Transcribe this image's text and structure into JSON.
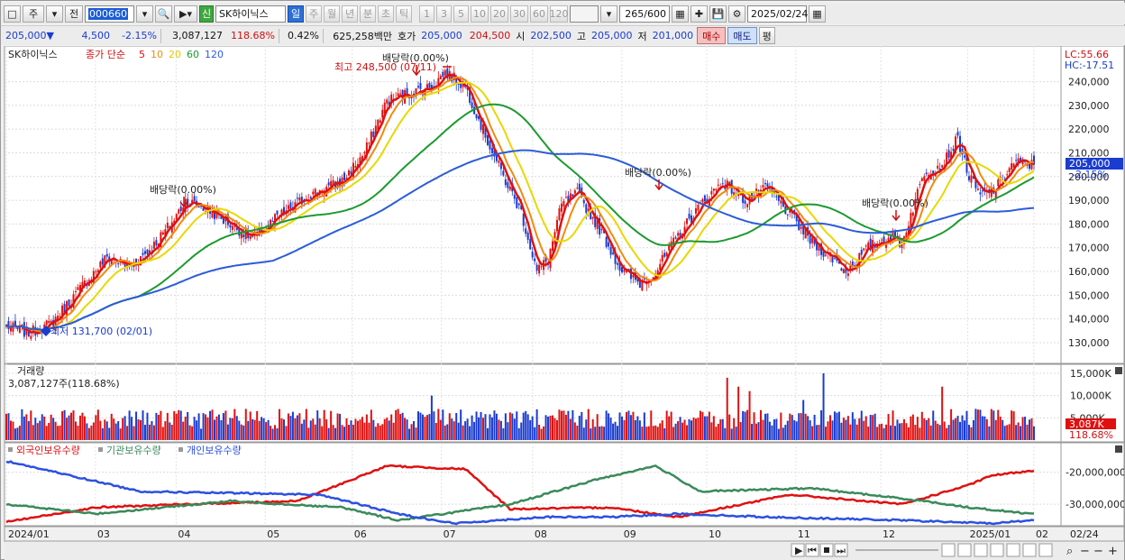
{
  "toolbar": {
    "period_main": "주",
    "prev_label": "전",
    "stock_code": "000660",
    "new_badge": "신",
    "stock_name": "SK하이닉스",
    "periods": [
      "일",
      "주",
      "월",
      "년",
      "분",
      "초",
      "틱"
    ],
    "active_period": "일",
    "numbers": [
      "1",
      "3",
      "5",
      "10",
      "20",
      "30",
      "60",
      "120"
    ],
    "count_value": "265",
    "count_total": "/600",
    "date_value": "2025/02/24"
  },
  "quote": {
    "price": "205,000",
    "change": "4,500",
    "change_pct": "-2.15%",
    "volume": "3,087,127",
    "volume_ratio": "118.68%",
    "turnover": "0.42%",
    "amount": "625,258백만",
    "bid_label": "호가",
    "bid1": "205,000",
    "bid2": "204,500",
    "open_label": "시",
    "open": "202,500",
    "high_label": "고",
    "high": "205,000",
    "low_label": "저",
    "low": "201,000",
    "buy_label": "매수",
    "sell_label": "매도",
    "eval_label": "평"
  },
  "price_panel": {
    "name": "SK하이닉스",
    "legend_prefix": "종가 단순",
    "ma_labels": [
      {
        "text": "5",
        "color": "#e01010"
      },
      {
        "text": "10",
        "color": "#f08a10"
      },
      {
        "text": "20",
        "color": "#e8c800"
      },
      {
        "text": "60",
        "color": "#1c9a30"
      },
      {
        "text": "120",
        "color": "#2c5cd8"
      }
    ],
    "lc": "LC:55.66",
    "hc": "HC:-17.51",
    "y_ticks": [
      "240,000",
      "230,000",
      "220,000",
      "210,000",
      "200,000",
      "190,000",
      "180,000",
      "170,000",
      "160,000",
      "150,000",
      "140,000",
      "130,000"
    ],
    "cur_price_tag": "205,000",
    "cur_pct_tag": "-2.15%",
    "max_label": "최고 248,500 (07/11)",
    "min_label": "최저 131,700 (02/01)",
    "dividend_labels": [
      "배당락(0.00%)",
      "배당락(0.00%)",
      "배당락(0.00%)",
      "배당락(0.00%)"
    ]
  },
  "volume_panel": {
    "title": "거래량",
    "current": "3,087,127주(118.68%)",
    "y_ticks": [
      "15,000K",
      "10,000K",
      "5,000K"
    ],
    "cur_tag": "3,087K",
    "cur_pct_tag": "118.68%"
  },
  "holdings_panel": {
    "series": [
      {
        "name": "외국인보유수량",
        "color": "#e01010"
      },
      {
        "name": "기관보유수량",
        "color": "#3a8a5a"
      },
      {
        "name": "개인보유수량",
        "color": "#2c50e0"
      }
    ],
    "y_ticks": [
      "-20,000,000",
      "-30,000,000"
    ]
  },
  "x_axis": {
    "labels": [
      "2024/01",
      "03",
      "04",
      "05",
      "06",
      "07",
      "08",
      "09",
      "10",
      "11",
      "12",
      "2025/01",
      "02"
    ],
    "right_label": "02/24"
  },
  "chart_data": {
    "type": "candlestick",
    "y_range": [
      122000,
      252000
    ],
    "ohlc_close_anchors": [
      [
        0,
        137000
      ],
      [
        10,
        134000
      ],
      [
        20,
        138000
      ],
      [
        35,
        155000
      ],
      [
        45,
        166000
      ],
      [
        55,
        162000
      ],
      [
        65,
        170000
      ],
      [
        75,
        182000
      ],
      [
        80,
        190000
      ],
      [
        90,
        186000
      ],
      [
        100,
        180000
      ],
      [
        110,
        174000
      ],
      [
        120,
        182000
      ],
      [
        135,
        192000
      ],
      [
        150,
        198000
      ],
      [
        160,
        210000
      ],
      [
        170,
        232000
      ],
      [
        180,
        235000
      ],
      [
        190,
        238000
      ],
      [
        196,
        244000
      ],
      [
        205,
        238000
      ],
      [
        215,
        215000
      ],
      [
        222,
        200000
      ],
      [
        230,
        185000
      ],
      [
        237,
        160000
      ],
      [
        242,
        165000
      ],
      [
        248,
        188000
      ],
      [
        255,
        193000
      ],
      [
        265,
        178000
      ],
      [
        275,
        160000
      ],
      [
        283,
        155000
      ],
      [
        290,
        160000
      ],
      [
        300,
        175000
      ],
      [
        310,
        188000
      ],
      [
        320,
        198000
      ],
      [
        330,
        190000
      ],
      [
        340,
        195000
      ],
      [
        350,
        184000
      ],
      [
        360,
        172000
      ],
      [
        370,
        165000
      ],
      [
        375,
        160000
      ],
      [
        385,
        170000
      ],
      [
        395,
        175000
      ],
      [
        400,
        172000
      ],
      [
        410,
        202000
      ],
      [
        418,
        205000
      ],
      [
        425,
        216000
      ],
      [
        430,
        200000
      ],
      [
        435,
        192000
      ],
      [
        442,
        195000
      ],
      [
        450,
        206000
      ],
      [
        458,
        205000
      ]
    ],
    "max_high": 248500,
    "min_low": 131700,
    "last_close": 205000,
    "volume_unit": "K",
    "volume_last": 3087
  }
}
